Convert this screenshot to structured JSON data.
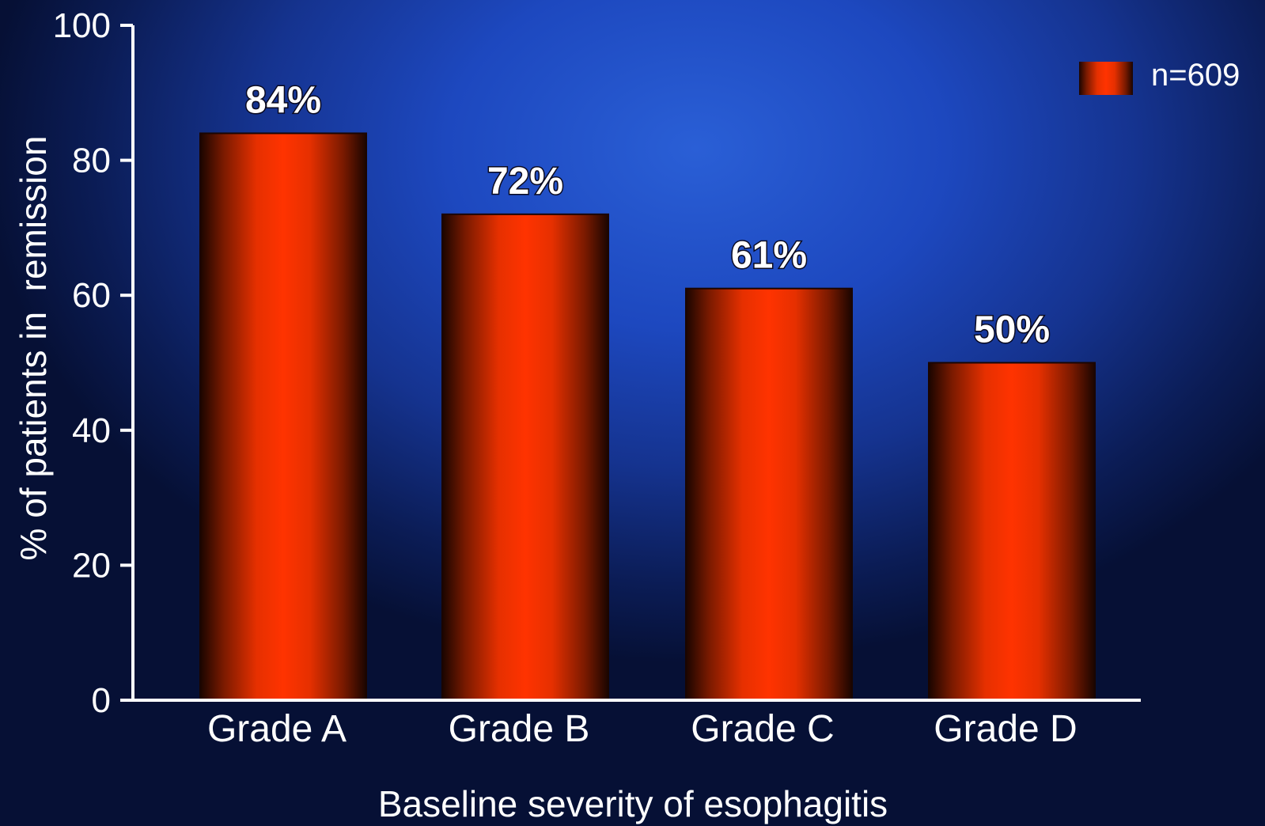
{
  "chart_data": {
    "type": "bar",
    "categories": [
      "Grade A",
      "Grade B",
      "Grade C",
      "Grade D"
    ],
    "series": [
      {
        "name": "n=609",
        "values": [
          84,
          72,
          61,
          50
        ],
        "color": "#ff3300"
      }
    ],
    "data_labels": [
      "84%",
      "72%",
      "61%",
      "50%"
    ],
    "xlabel": "Baseline severity of esophagitis",
    "ylabel": "% of patients in  remission",
    "ylim": [
      0,
      100
    ],
    "yticks": [
      0,
      20,
      40,
      60,
      80,
      100
    ],
    "grid": false,
    "legend": {
      "placement": "top-right",
      "entries": [
        "n=609"
      ]
    },
    "colors": {
      "bar": "#ff3300",
      "bar_edge": "#1a0500",
      "axis": "#ffffff",
      "background": "#1d48bf"
    }
  }
}
